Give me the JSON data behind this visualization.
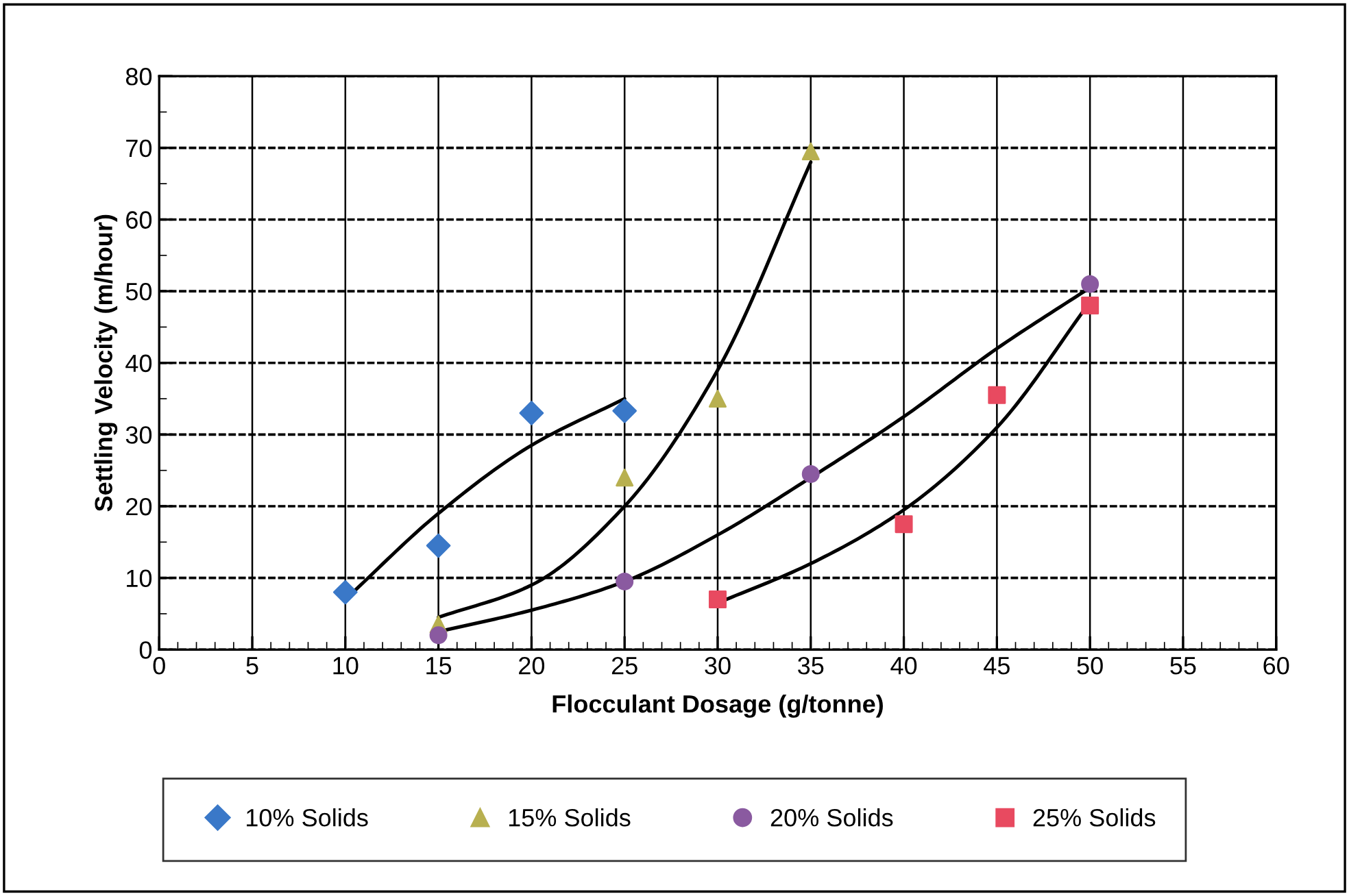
{
  "chart_data": {
    "type": "scatter",
    "xlabel": "Flocculant Dosage (g/tonne)",
    "ylabel": "Settling Velocity (m/hour)",
    "xlim": [
      0,
      60
    ],
    "xticks": [
      0,
      5,
      10,
      15,
      20,
      25,
      30,
      35,
      40,
      45,
      50,
      55,
      60
    ],
    "ylim": [
      0,
      80
    ],
    "yticks": [
      0,
      10,
      20,
      30,
      40,
      50,
      60,
      70,
      80
    ],
    "grid": true,
    "legend": "bottom",
    "series": [
      {
        "name": "10% Solids",
        "color": "#3a78c8",
        "marker": "diamond",
        "x": [
          10,
          15,
          20,
          25
        ],
        "values": [
          8,
          14.5,
          33,
          33.3
        ]
      },
      {
        "name": "15% Solids",
        "color": "#b8b050",
        "marker": "triangle",
        "x": [
          15,
          25,
          30,
          35
        ],
        "values": [
          3.5,
          24,
          35,
          69.5
        ]
      },
      {
        "name": "20% Solids",
        "color": "#8a5aa0",
        "marker": "circle",
        "x": [
          15,
          25,
          35,
          50
        ],
        "values": [
          2,
          9.5,
          24.5,
          51
        ]
      },
      {
        "name": "25% Solids",
        "color": "#e84a60",
        "marker": "square",
        "x": [
          30,
          40,
          45,
          50
        ],
        "values": [
          7,
          17.5,
          35.5,
          48
        ]
      },
      {
        "type": "line",
        "color": "#000000",
        "marker": "none",
        "x": [
          10,
          15,
          20,
          25
        ],
        "values": [
          7,
          19,
          28.5,
          35
        ]
      },
      {
        "type": "line",
        "color": "#000000",
        "marker": "none",
        "x": [
          15,
          20,
          25,
          30,
          35
        ],
        "values": [
          4.5,
          9,
          20,
          39,
          68
        ]
      },
      {
        "type": "line",
        "color": "#000000",
        "marker": "none",
        "x": [
          15,
          20,
          25,
          30,
          35,
          40,
          45,
          50
        ],
        "values": [
          2.5,
          5.5,
          9.5,
          16,
          24,
          32.5,
          42,
          50.5
        ]
      },
      {
        "type": "line",
        "color": "#000000",
        "marker": "none",
        "x": [
          30,
          35,
          40,
          45,
          50
        ],
        "values": [
          6.5,
          12,
          19.5,
          31,
          48.5
        ]
      }
    ]
  }
}
